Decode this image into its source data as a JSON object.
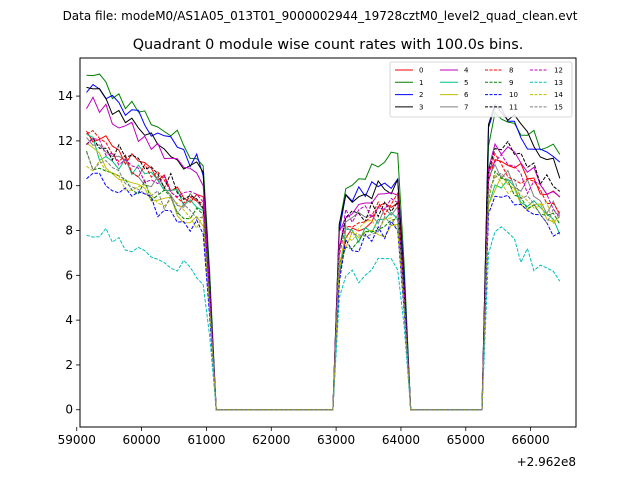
{
  "suptitle": "Data file: modeM0/AS1A05_013T01_9000002944_19728cztM0_level2_quad_clean.evt",
  "chart_data": {
    "type": "line",
    "title": "Quadrant 0 module wise count rates with 100.0s bins.",
    "xlabel": "",
    "ylabel": "",
    "x_offset_label": "+2.962e8",
    "xlim": [
      59050,
      66700
    ],
    "ylim": [
      -0.77,
      15.7
    ],
    "x_ticks": [
      59000,
      60000,
      61000,
      62000,
      63000,
      64000,
      65000,
      66000
    ],
    "x_tick_labels": [
      "59000",
      "60000",
      "61000",
      "62000",
      "63000",
      "64000",
      "65000",
      "66000"
    ],
    "y_ticks": [
      0,
      2,
      4,
      6,
      8,
      10,
      12,
      14
    ],
    "y_tick_labels": [
      "0",
      "2",
      "4",
      "6",
      "8",
      "10",
      "12",
      "14"
    ],
    "legend_location": "upper-right",
    "legend_columns": 4,
    "x_segments": [
      {
        "start": 59150,
        "end": 61050,
        "step": 100,
        "active": true
      },
      {
        "start": 61150,
        "end": 62950,
        "step": 100,
        "active": false
      },
      {
        "start": 63050,
        "end": 64050,
        "step": 100,
        "active": true
      },
      {
        "start": 64150,
        "end": 65250,
        "step": 100,
        "active": false
      },
      {
        "start": 65350,
        "end": 66450,
        "step": 100,
        "active": true
      }
    ],
    "series": [
      {
        "name": "0",
        "color": "#ff0000",
        "dash": "solid",
        "seg_levels": [
          [
            12.3,
            9.0
          ],
          [
            7.5,
            9.5
          ],
          [
            11.7,
            9.2
          ]
        ]
      },
      {
        "name": "1",
        "color": "#008000",
        "dash": "solid",
        "seg_levels": [
          [
            15.1,
            11.0
          ],
          [
            9.9,
            11.5
          ],
          [
            13.4,
            11.3
          ]
        ]
      },
      {
        "name": "2",
        "color": "#0000ff",
        "dash": "solid",
        "seg_levels": [
          [
            14.6,
            10.6
          ],
          [
            9.2,
            10.6
          ],
          [
            13.5,
            10.9
          ]
        ]
      },
      {
        "name": "3",
        "color": "#000000",
        "dash": "solid",
        "seg_levels": [
          [
            14.4,
            10.2
          ],
          [
            9.2,
            10.3
          ],
          [
            14.3,
            10.5
          ]
        ]
      },
      {
        "name": "4",
        "color": "#bf00bf",
        "dash": "solid",
        "seg_levels": [
          [
            13.8,
            10.0
          ],
          [
            8.9,
            9.8
          ],
          [
            12.0,
            9.6
          ]
        ]
      },
      {
        "name": "5",
        "color": "#00bf7f",
        "dash": "solid",
        "seg_levels": [
          [
            11.9,
            8.6
          ],
          [
            7.6,
            8.6
          ],
          [
            10.6,
            8.1
          ]
        ]
      },
      {
        "name": "6",
        "color": "#bfbf00",
        "dash": "solid",
        "seg_levels": [
          [
            11.6,
            8.0
          ],
          [
            7.5,
            8.3
          ],
          [
            10.4,
            8.2
          ]
        ]
      },
      {
        "name": "7",
        "color": "#808080",
        "dash": "solid",
        "seg_levels": [
          [
            12.0,
            8.7
          ],
          [
            8.1,
            9.0
          ],
          [
            11.2,
            8.7
          ]
        ]
      },
      {
        "name": "8",
        "color": "#ff0000",
        "dash": "dashed",
        "seg_levels": [
          [
            12.2,
            8.9
          ],
          [
            8.3,
            9.4
          ],
          [
            11.5,
            9.0
          ]
        ]
      },
      {
        "name": "9",
        "color": "#008000",
        "dash": "dashed",
        "seg_levels": [
          [
            11.3,
            8.3
          ],
          [
            7.3,
            8.6
          ],
          [
            10.5,
            8.3
          ]
        ]
      },
      {
        "name": "10",
        "color": "#0000ff",
        "dash": "dashed",
        "seg_levels": [
          [
            10.4,
            7.9
          ],
          [
            7.2,
            8.2
          ],
          [
            10.0,
            7.7
          ]
        ]
      },
      {
        "name": "11",
        "color": "#000000",
        "dash": "dashed",
        "seg_levels": [
          [
            12.2,
            9.2
          ],
          [
            8.4,
            9.5
          ],
          [
            12.2,
            9.8
          ]
        ]
      },
      {
        "name": "12",
        "color": "#bf00bf",
        "dash": "dashed",
        "seg_levels": [
          [
            12.0,
            9.0
          ],
          [
            8.6,
            9.2
          ],
          [
            11.5,
            8.9
          ]
        ]
      },
      {
        "name": "13",
        "color": "#00bfbf",
        "dash": "dashed",
        "seg_levels": [
          [
            8.1,
            5.8
          ],
          [
            5.9,
            6.6
          ],
          [
            8.2,
            5.6
          ]
        ]
      },
      {
        "name": "14",
        "color": "#bfbf00",
        "dash": "dashed",
        "seg_levels": [
          [
            11.0,
            8.1
          ],
          [
            7.7,
            8.5
          ],
          [
            10.6,
            8.5
          ]
        ]
      },
      {
        "name": "15",
        "color": "#808080",
        "dash": "dashed",
        "seg_levels": [
          [
            11.2,
            8.2
          ],
          [
            7.8,
            8.6
          ],
          [
            10.8,
            8.3
          ]
        ]
      }
    ]
  }
}
